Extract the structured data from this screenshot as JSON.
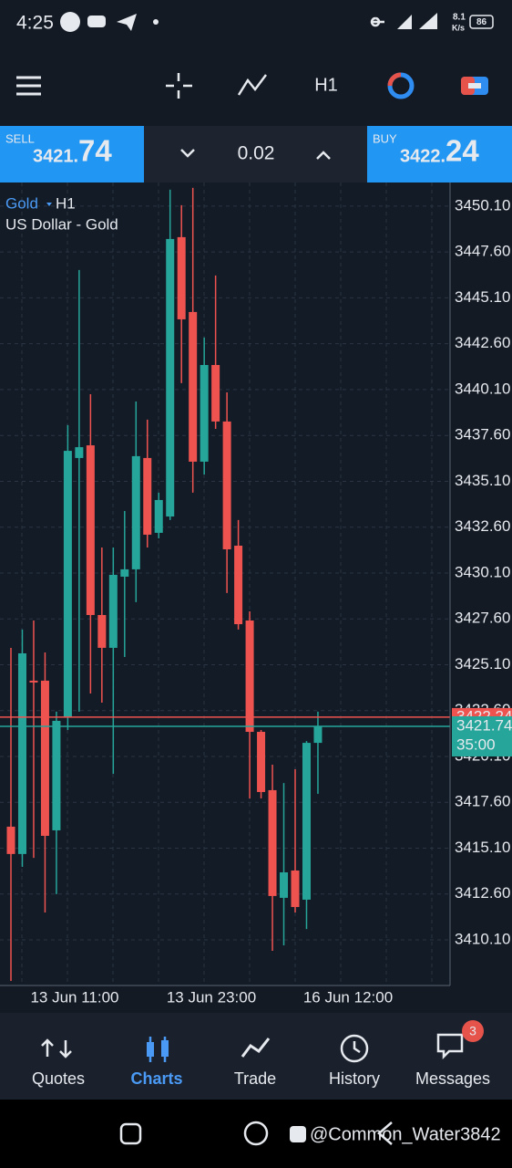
{
  "status_bar": {
    "time": "4:25",
    "speed": "8.1",
    "speed_unit": "K/s",
    "battery": "86"
  },
  "toolbar": {
    "timeframe": "H1"
  },
  "trade_bar": {
    "sell_label": "SELL",
    "sell_price_main": "3421.",
    "sell_price_pips": "74",
    "volume": "0.02",
    "buy_label": "BUY",
    "buy_price_main": "3422.",
    "buy_price_pips": "24"
  },
  "chart_data": {
    "type": "candlestick",
    "symbol": "Gold",
    "timeframe": "H1",
    "description": "US Dollar - Gold",
    "up_color": "#26a69a",
    "down_color": "#ef5350",
    "grid": true,
    "ylim": [
      3407.71,
      3451.39
    ],
    "yticks": [
      {
        "value": 3450.1,
        "label": "3450.10"
      },
      {
        "value": 3447.6,
        "label": "3447.60"
      },
      {
        "value": 3445.1,
        "label": "3445.10"
      },
      {
        "value": 3442.6,
        "label": "3442.60"
      },
      {
        "value": 3440.1,
        "label": "3440.10"
      },
      {
        "value": 3437.6,
        "label": "3437.60"
      },
      {
        "value": 3435.1,
        "label": "3435.10"
      },
      {
        "value": 3432.6,
        "label": "3432.60"
      },
      {
        "value": 3430.1,
        "label": "3430.10"
      },
      {
        "value": 3427.6,
        "label": "3427.60"
      },
      {
        "value": 3425.1,
        "label": "3425.10"
      },
      {
        "value": 3422.6,
        "label": "3422.60"
      },
      {
        "value": 3420.1,
        "label": "3420.10"
      },
      {
        "value": 3417.6,
        "label": "3417.60"
      },
      {
        "value": 3415.1,
        "label": "3415.10"
      },
      {
        "value": 3412.6,
        "label": "3412.60"
      },
      {
        "value": 3410.1,
        "label": "3410.10"
      }
    ],
    "x_labels": [
      "13 Jun 11:00",
      "13 Jun 23:00",
      "16 Jun 12:00"
    ],
    "open": [
      3416.27,
      3414.78,
      3424.23,
      3424.23,
      3416.07,
      3422.24,
      3436.37,
      3437.06,
      3427.81,
      3426.02,
      3429.9,
      3430.3,
      3436.37,
      3432.29,
      3433.18,
      3448.41,
      3444.33,
      3436.17,
      3441.44,
      3438.36,
      3431.59,
      3427.51,
      3421.44,
      3418.26,
      3412.39,
      3413.88,
      3412.29,
      3420.84
    ],
    "high": [
      3426.02,
      3427.02,
      3427.51,
      3425.77,
      3422.54,
      3438.16,
      3446.62,
      3439.85,
      3431.49,
      3431.49,
      3433.48,
      3439.45,
      3438.46,
      3434.48,
      3451.0,
      3450.15,
      3451.1,
      3442.94,
      3446.32,
      3439.95,
      3432.99,
      3428.01,
      3421.54,
      3419.65,
      3418.65,
      3419.4,
      3420.94,
      3422.54
    ],
    "low": [
      3407.86,
      3414.08,
      3414.57,
      3411.59,
      3412.59,
      3421.54,
      3422.54,
      3423.53,
      3423.03,
      3419.15,
      3425.52,
      3428.51,
      3431.49,
      3431.99,
      3432.99,
      3440.45,
      3434.48,
      3435.47,
      3437.96,
      3429.01,
      3427.02,
      3417.81,
      3417.81,
      3409.5,
      3409.8,
      3411.59,
      3410.69,
      3418.06
    ],
    "close": [
      3414.78,
      3425.72,
      3424.13,
      3415.77,
      3422.04,
      3436.76,
      3436.96,
      3427.81,
      3426.02,
      3430.0,
      3430.3,
      3436.47,
      3432.19,
      3434.08,
      3448.31,
      3443.93,
      3436.17,
      3441.44,
      3438.36,
      3431.39,
      3427.31,
      3421.44,
      3418.16,
      3412.49,
      3413.78,
      3411.89,
      3420.84,
      3421.74
    ],
    "ask": 3422.24,
    "bid": 3421.74,
    "countdown": "35:00",
    "ask_color": "#ef5350",
    "bid_color": "#26a69a"
  },
  "nav": {
    "items": [
      "Quotes",
      "Charts",
      "Trade",
      "History",
      "Messages"
    ],
    "active": 1,
    "badge": "3"
  },
  "watermark": "@Common_Water3842"
}
